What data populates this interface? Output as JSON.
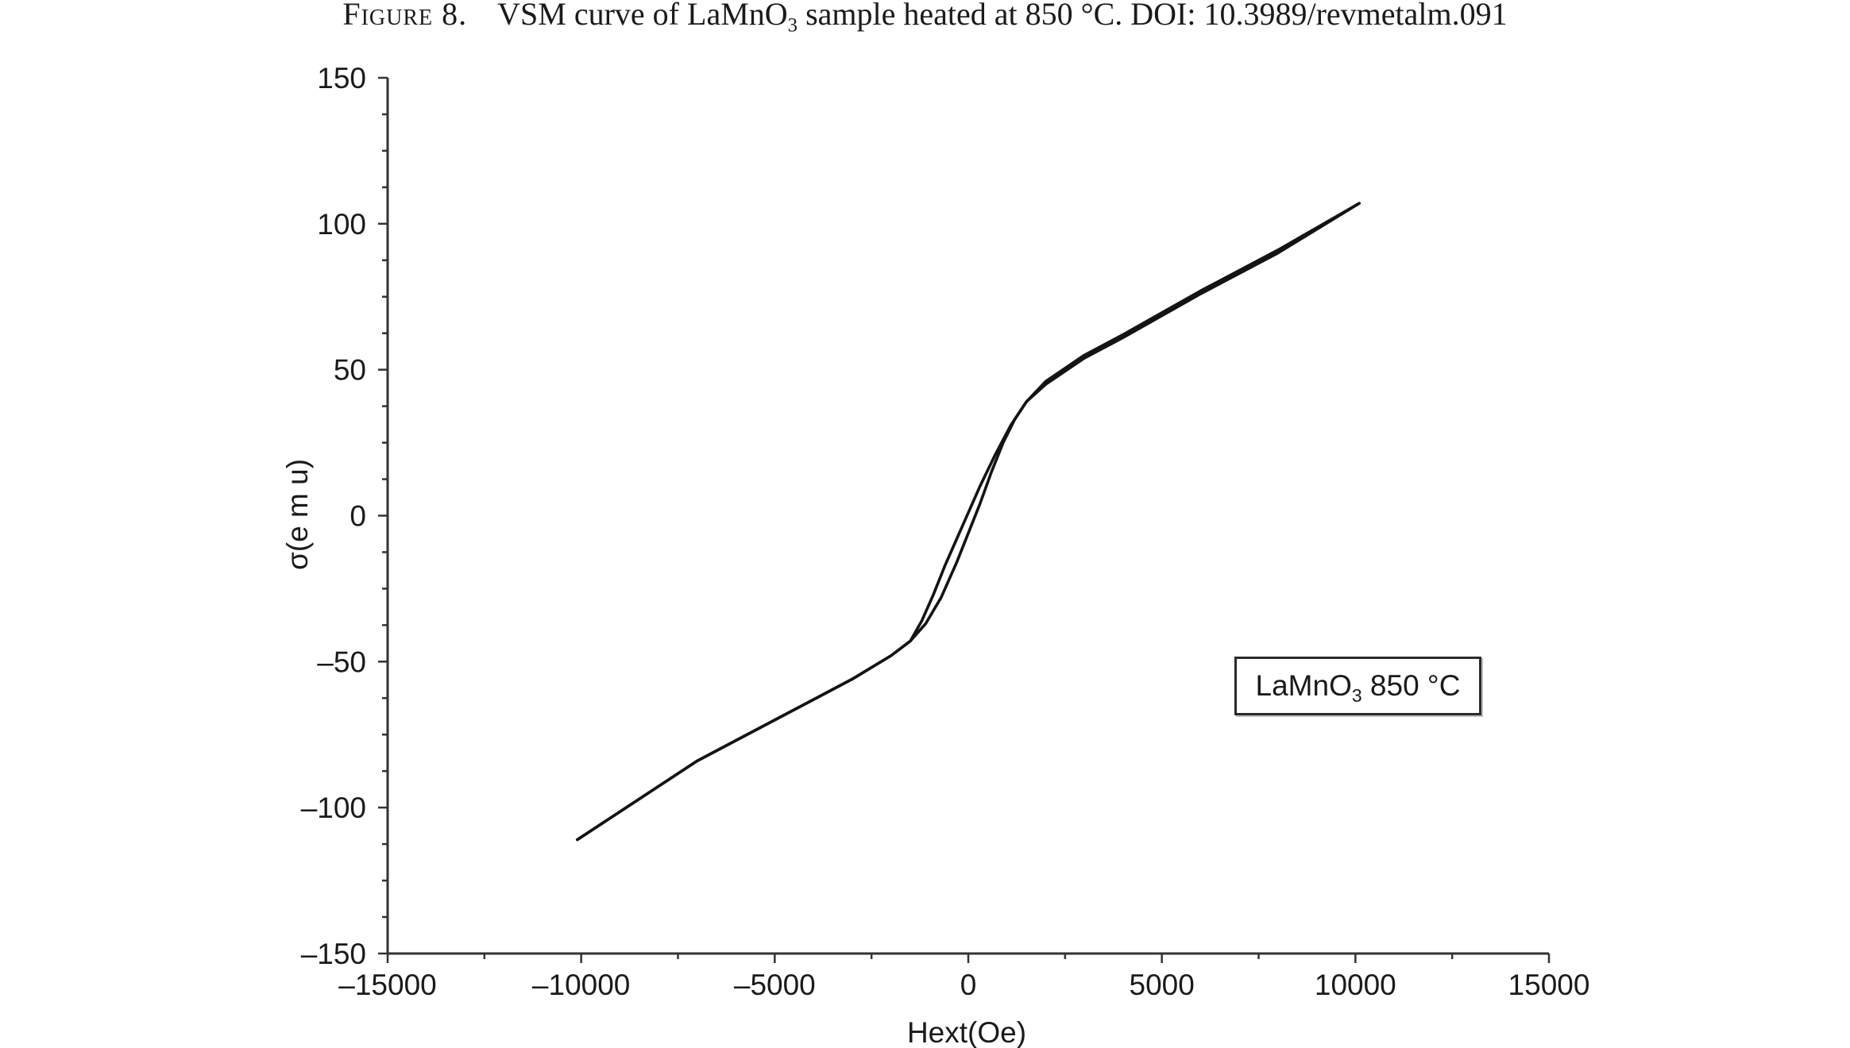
{
  "caption": {
    "figure_label": "Figure 8.",
    "text_before_formula": "VSM curve of LaMnO",
    "formula_subscript": "3",
    "text_after_formula": " sample heated at 850 °C. DOI: 10.3989/revmetalm.091"
  },
  "legend": {
    "text_before_subscript": "LaMnO",
    "subscript": "3",
    "text_after_subscript": " 850 °C",
    "placement": "right-middle"
  },
  "colors": {
    "line": "#141414",
    "axis": "#333333",
    "text": "#1a1a1a"
  },
  "chart_data": {
    "type": "line",
    "xlabel": "Hext(Oe)",
    "ylabel": "σ(e m u)",
    "xlim": [
      -15000,
      15000
    ],
    "ylim": [
      -150,
      150
    ],
    "x_ticks": [
      -15000,
      -10000,
      -5000,
      0,
      5000,
      10000,
      15000
    ],
    "x_tick_labels": [
      "–15000",
      "–10000",
      "–5000",
      "0",
      "5000",
      "10000",
      "15000"
    ],
    "y_ticks": [
      150,
      100,
      50,
      0,
      -50,
      -100,
      -150
    ],
    "y_tick_labels": [
      "150",
      "100",
      "50",
      "0",
      "–50",
      "–100",
      "–150"
    ],
    "grid": false,
    "series": [
      {
        "name": "LaMnO3 850 °C",
        "branch": "descending",
        "x": [
          10100,
          8000,
          6000,
          4000,
          3000,
          2000,
          1500,
          1100,
          700,
          300,
          0,
          -300,
          -600,
          -900,
          -1200,
          -1500,
          -2000,
          -3000,
          -5000,
          -7000,
          -10100
        ],
        "y": [
          107,
          91,
          77,
          62,
          55,
          46,
          39,
          31,
          21,
          10,
          1,
          -8,
          -17,
          -27,
          -36,
          -43,
          -48,
          -56,
          -70,
          -84,
          -111
        ]
      },
      {
        "name": "LaMnO3 850 °C",
        "branch": "ascending",
        "x": [
          -10100,
          -7000,
          -5000,
          -3000,
          -2000,
          -1500,
          -1100,
          -700,
          -300,
          0,
          300,
          600,
          900,
          1200,
          1500,
          2000,
          3000,
          4000,
          6000,
          8000,
          10100
        ],
        "y": [
          -111,
          -84,
          -70,
          -56,
          -48,
          -43,
          -37,
          -28,
          -16,
          -6,
          4,
          15,
          25,
          33,
          39,
          45,
          54,
          61,
          76,
          90,
          107
        ]
      }
    ]
  }
}
